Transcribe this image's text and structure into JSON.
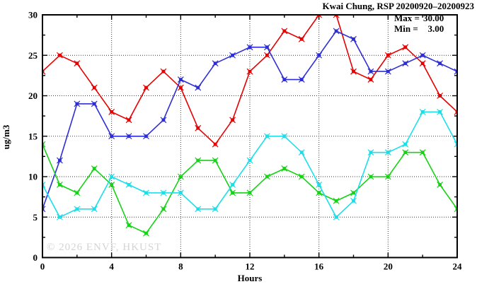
{
  "title": "Kwai Chung, RSP 20200920–20200923",
  "legend": {
    "max_label": "Max =",
    "max_value": "30.00",
    "min_label": "Min =",
    "min_value": "3.00"
  },
  "watermark": "© 2026 ENVF, HKUST",
  "colors": {
    "red": "#e60000",
    "blue": "#2e2ed6",
    "green": "#16d316",
    "cyan": "#1bdfe9",
    "axis": "#000000",
    "grid": "#3a3a3a",
    "watermark": "#d4d4d4"
  },
  "chart_data": {
    "type": "line",
    "title": "Kwai Chung, RSP 20200920–20200923",
    "xlabel": "Hours",
    "ylabel": "ug/m3",
    "xlim": [
      0,
      24
    ],
    "ylim": [
      0,
      30
    ],
    "x_major_ticks": [
      0,
      4,
      8,
      12,
      16,
      20,
      24
    ],
    "x_minor_ticks": [
      2,
      6,
      10,
      14,
      18,
      22
    ],
    "y_major_ticks": [
      0,
      5,
      10,
      15,
      20,
      25,
      30
    ],
    "y_minor_ticks": [
      2.5,
      7.5,
      12.5,
      17.5,
      22.5,
      27.5
    ],
    "grid": "dotted lines at major ticks, mirrored inward ticks on all four axes",
    "legend_position": "top-right text annotation (Max/Min)",
    "stat_max": 30.0,
    "stat_min": 3.0,
    "x": [
      0,
      1,
      2,
      3,
      4,
      5,
      6,
      7,
      8,
      9,
      10,
      11,
      12,
      13,
      14,
      15,
      16,
      17,
      18,
      19,
      20,
      21,
      22,
      23,
      24
    ],
    "series": [
      {
        "name": "series-red",
        "color": "#e60000",
        "values": [
          23,
          25,
          24,
          21,
          18,
          17,
          21,
          23,
          21,
          16,
          14,
          17,
          23,
          25,
          28,
          27,
          30,
          30,
          23,
          22,
          25,
          26,
          24,
          20,
          18
        ]
      },
      {
        "name": "series-blue",
        "color": "#2e2ed6",
        "values": [
          6,
          12,
          19,
          19,
          15,
          15,
          15,
          17,
          22,
          21,
          24,
          25,
          26,
          26,
          22,
          22,
          25,
          28,
          27,
          23,
          23,
          24,
          25,
          24,
          23
        ]
      },
      {
        "name": "series-green",
        "color": "#16d316",
        "values": [
          14,
          9,
          8,
          11,
          9,
          4,
          3,
          6,
          10,
          12,
          12,
          8,
          8,
          10,
          11,
          10,
          8,
          7,
          8,
          10,
          10,
          13,
          13,
          9,
          6
        ]
      },
      {
        "name": "series-cyan",
        "color": "#1bdfe9",
        "values": [
          9,
          5,
          6,
          6,
          10,
          9,
          8,
          8,
          8,
          6,
          6,
          9,
          12,
          15,
          15,
          13,
          9,
          5,
          7,
          13,
          13,
          14,
          18,
          18,
          14
        ]
      }
    ]
  }
}
